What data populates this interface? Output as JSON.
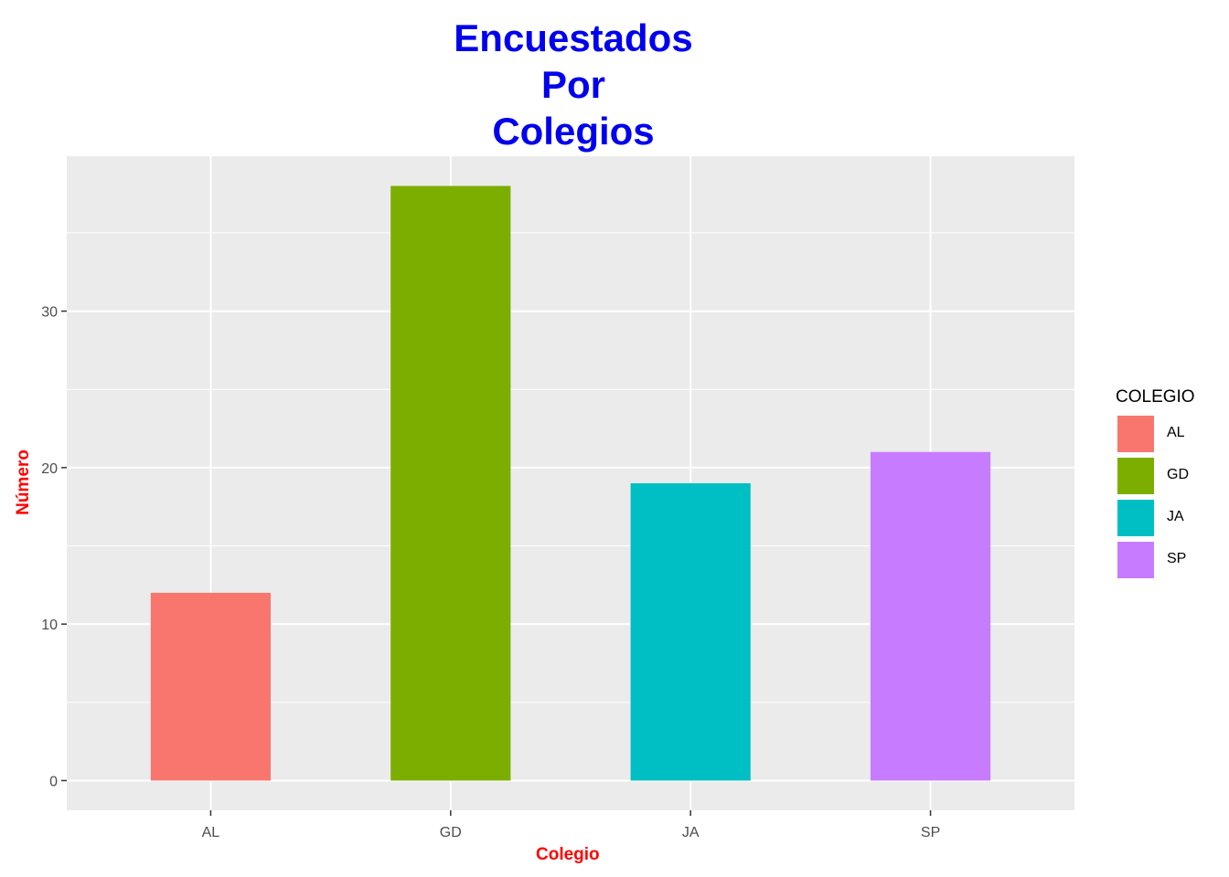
{
  "chart_data": {
    "type": "bar",
    "title_lines": [
      "Encuestados",
      "Por",
      "Colegios"
    ],
    "xlabel": "Colegio",
    "ylabel": "Número",
    "categories": [
      "AL",
      "GD",
      "JA",
      "SP"
    ],
    "values": [
      12,
      38,
      19,
      21
    ],
    "colors": [
      "#F8766D",
      "#7CAE00",
      "#00BFC4",
      "#C77CFF"
    ],
    "ylim": [
      -1.9,
      39.9
    ],
    "yticks": [
      0,
      10,
      20,
      30
    ],
    "legend": {
      "title": "COLEGIO",
      "placement": "right",
      "entries": [
        "AL",
        "GD",
        "JA",
        "SP"
      ]
    },
    "grid": true,
    "panel_background": "#EBEBEB"
  }
}
